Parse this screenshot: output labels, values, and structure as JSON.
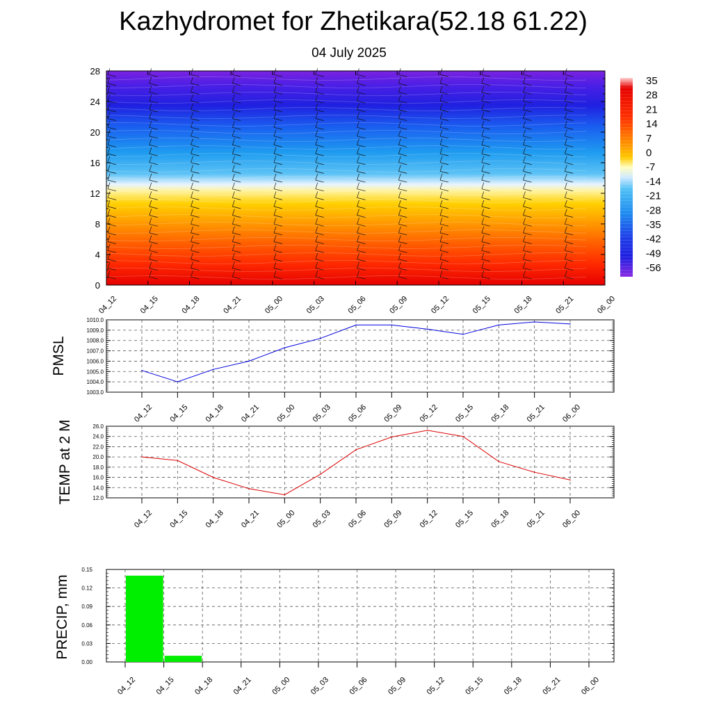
{
  "title": "Kazhydromet for Zhetikara(52.18 61.22)",
  "subtitle": "04 July 2025",
  "time_labels": [
    "04_12",
    "04_15",
    "04_18",
    "04_21",
    "05_00",
    "05_03",
    "05_06",
    "05_09",
    "05_12",
    "05_15",
    "05_18",
    "05_21",
    "06_00"
  ],
  "chart_data": [
    {
      "type": "heatmap",
      "ylim": [
        0,
        28
      ],
      "y_ticks": [
        "0",
        "4",
        "8",
        "12",
        "16",
        "20",
        "24",
        "28"
      ],
      "x_ticks": [
        "04_12",
        "04_15",
        "04_18",
        "04_21",
        "05_00",
        "05_03",
        "05_06",
        "05_09",
        "05_12",
        "05_15",
        "05_18",
        "05_21",
        "06_00"
      ],
      "colorbar_labels": [
        "35",
        "28",
        "21",
        "14",
        "7",
        "0",
        "-7",
        "-14",
        "-21",
        "-28",
        "-35",
        "-42",
        "-49",
        "-56"
      ],
      "colors": {
        "warm": "#e60000",
        "mid": "#ffd000",
        "neutral": "#ffffe0",
        "cool": "#1e9bf0",
        "cold": "#2020e0",
        "coldest": "#7a22e0"
      },
      "overlay": "wind barbs"
    },
    {
      "type": "line",
      "ylabel": "PMSL",
      "ylim": [
        1003,
        1010
      ],
      "y_ticks": [
        "1003.0",
        "1004.0",
        "1005.0",
        "1006.0",
        "1007.0",
        "1008.0",
        "1009.0",
        "1010.0"
      ],
      "x": [
        "04_12",
        "04_15",
        "04_18",
        "04_21",
        "05_00",
        "05_03",
        "05_06",
        "05_09",
        "05_12",
        "05_15",
        "05_18",
        "05_21",
        "06_00"
      ],
      "series": [
        {
          "values": [
            1005.1,
            1004.0,
            1005.2,
            1006.0,
            1007.3,
            1008.2,
            1009.5,
            1009.5,
            1009.1,
            1008.6,
            1009.5,
            1009.8,
            1009.6
          ],
          "color": "#0000dd"
        }
      ],
      "grid": true
    },
    {
      "type": "line",
      "ylabel": "TEMP at 2 M",
      "ylim": [
        12,
        26
      ],
      "y_ticks": [
        "12.0",
        "14.0",
        "16.0",
        "18.0",
        "20.0",
        "22.0",
        "24.0",
        "26.0"
      ],
      "x": [
        "04_12",
        "04_15",
        "04_18",
        "04_21",
        "05_00",
        "05_03",
        "05_06",
        "05_09",
        "05_12",
        "05_15",
        "05_18",
        "05_21",
        "06_00"
      ],
      "series": [
        {
          "values": [
            20.0,
            19.3,
            16.0,
            13.8,
            12.6,
            16.6,
            21.4,
            23.9,
            25.2,
            24.0,
            19.1,
            17.0,
            15.5
          ],
          "color": "#dd0000"
        }
      ],
      "grid": true
    },
    {
      "type": "bar",
      "ylabel": "PRECIP, mm",
      "ylim": [
        0,
        0.15
      ],
      "y_ticks": [
        "0.00",
        "0.03",
        "0.06",
        "0.09",
        "0.12",
        "0.15"
      ],
      "categories": [
        "04_12",
        "04_15",
        "04_18",
        "04_21",
        "05_00",
        "05_03",
        "05_06",
        "05_09",
        "05_12",
        "05_15",
        "05_18",
        "05_21",
        "06_00"
      ],
      "values": [
        0,
        0.14,
        0.01,
        0,
        0,
        0,
        0,
        0,
        0,
        0,
        0,
        0,
        0
      ],
      "color": "#00ee00",
      "grid": true
    }
  ]
}
